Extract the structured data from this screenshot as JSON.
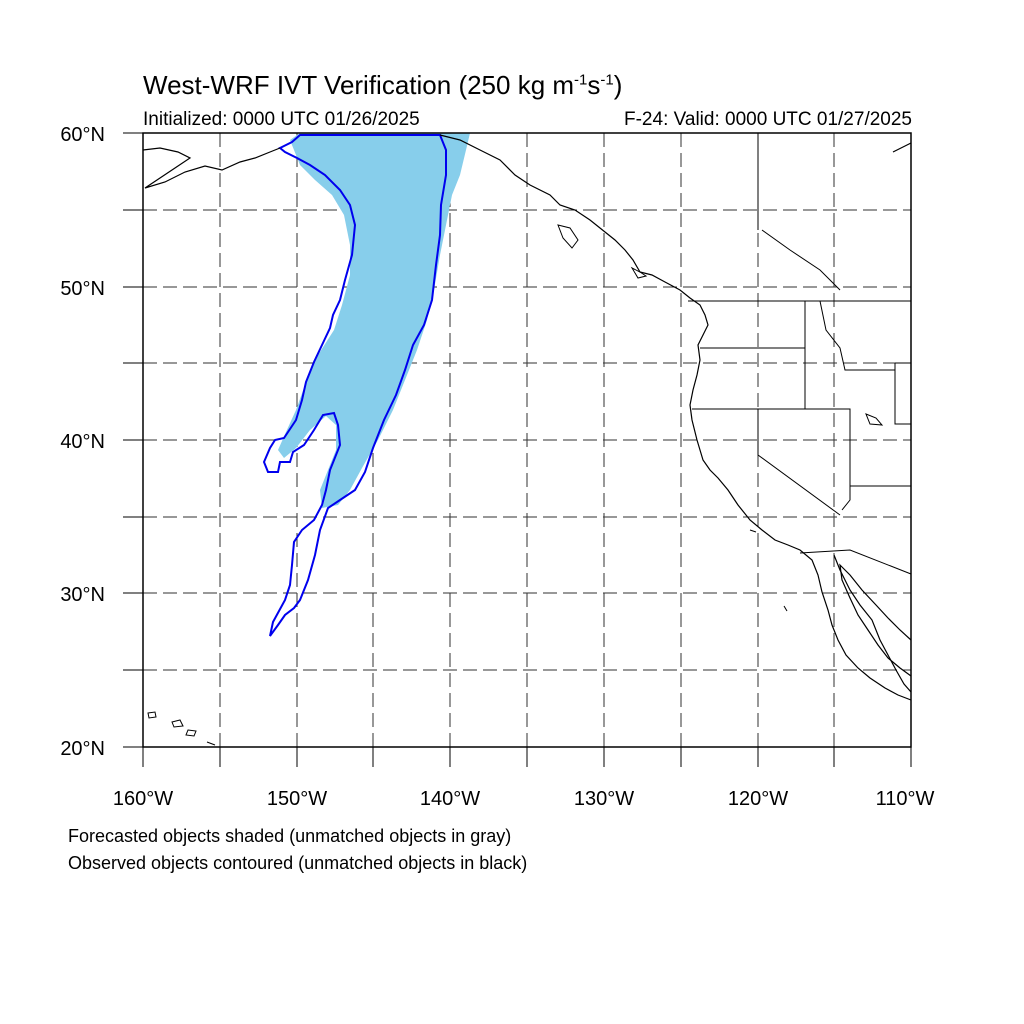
{
  "title": {
    "main": "West-WRF IVT Verification (250 kg m",
    "sup1": "-1",
    "mid": "s",
    "sup2": "-1",
    "end": ")"
  },
  "subtitle": {
    "initialized": "Initialized: 0000 UTC 01/26/2025",
    "valid": "F-24: Valid: 0000 UTC 01/27/2025"
  },
  "axes": {
    "lat_labels": [
      "60°N",
      "50°N",
      "40°N",
      "30°N",
      "20°N"
    ],
    "lon_labels": [
      "160°W",
      "150°W",
      "140°W",
      "130°W",
      "120°W",
      "110°W"
    ],
    "lat_range": [
      20,
      60
    ],
    "lon_range": [
      -160,
      -110
    ],
    "grid": "dashed every 5 degrees"
  },
  "legend": {
    "line1": "Forecasted objects shaded (unmatched objects in gray)",
    "line2": "Observed objects contoured (unmatched objects in black)"
  },
  "colors": {
    "forecast_fill": "#87ceeb",
    "observed_contour": "#0000ee",
    "coastline": "#000000",
    "grid": "#000000"
  }
}
